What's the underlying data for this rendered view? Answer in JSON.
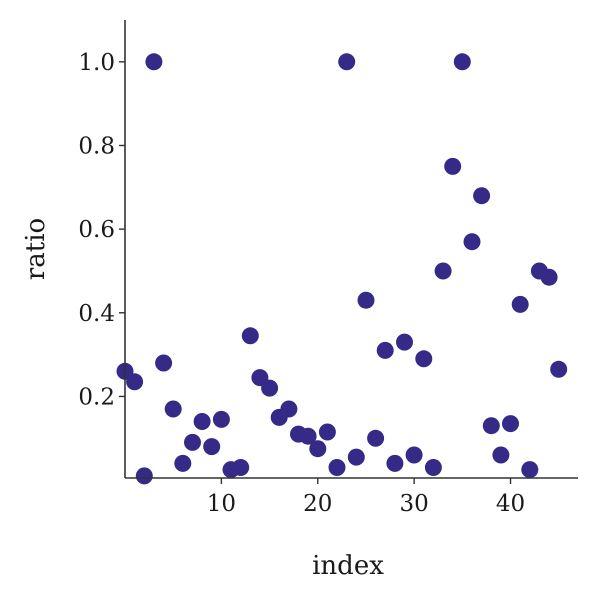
{
  "colors": {
    "marker": "#352a87"
  },
  "chart_data": {
    "type": "scatter",
    "title": "",
    "xlabel": "index",
    "ylabel": "ratio",
    "xlim": [
      0,
      47
    ],
    "ylim": [
      0.005,
      1.1
    ],
    "xticks": [
      10,
      20,
      30,
      40
    ],
    "yticks": [
      0.2,
      0.4,
      0.6,
      0.8,
      1.0
    ],
    "ytick_labels": [
      "0.2",
      "0.4",
      "0.6",
      "0.8",
      "1.0"
    ],
    "grid": false,
    "legend": "none",
    "series": [
      {
        "x": [
          0,
          1,
          2,
          3,
          4,
          5,
          6,
          7,
          8,
          9,
          10,
          11,
          12,
          13,
          14,
          15,
          16,
          17,
          18,
          19,
          20,
          21,
          22,
          23,
          24,
          25,
          26,
          27,
          28,
          29,
          30,
          31,
          32,
          33,
          34,
          35,
          36,
          37,
          38,
          39,
          40,
          41,
          42,
          43,
          44,
          45
        ],
        "y": [
          0.26,
          0.235,
          0.01,
          1.0,
          0.28,
          0.17,
          0.04,
          0.09,
          0.14,
          0.08,
          0.145,
          0.025,
          0.03,
          0.345,
          0.245,
          0.22,
          0.15,
          0.17,
          0.11,
          0.105,
          0.075,
          0.115,
          0.03,
          1.0,
          0.055,
          0.43,
          0.1,
          0.31,
          0.04,
          0.33,
          0.06,
          0.29,
          0.03,
          0.5,
          0.75,
          1.0,
          0.57,
          0.68,
          0.13,
          0.06,
          0.135,
          0.42,
          0.025,
          0.5,
          0.485,
          0.265
        ]
      }
    ]
  }
}
